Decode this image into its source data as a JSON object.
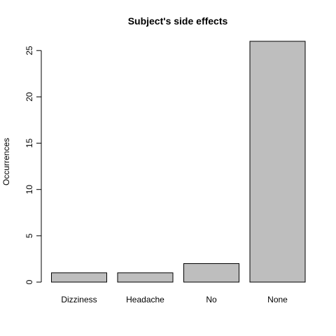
{
  "chart_data": {
    "type": "bar",
    "title": "Subject's side effects",
    "xlabel": "",
    "ylabel": "Occurrences",
    "categories": [
      "Dizziness",
      "Headache",
      "No",
      "None"
    ],
    "values": [
      1,
      1,
      2,
      26
    ],
    "ylim": [
      0,
      26
    ],
    "yticks": [
      0,
      5,
      10,
      15,
      20,
      25
    ],
    "bar_color": "#bebebe",
    "grid": false,
    "legend": "none"
  }
}
